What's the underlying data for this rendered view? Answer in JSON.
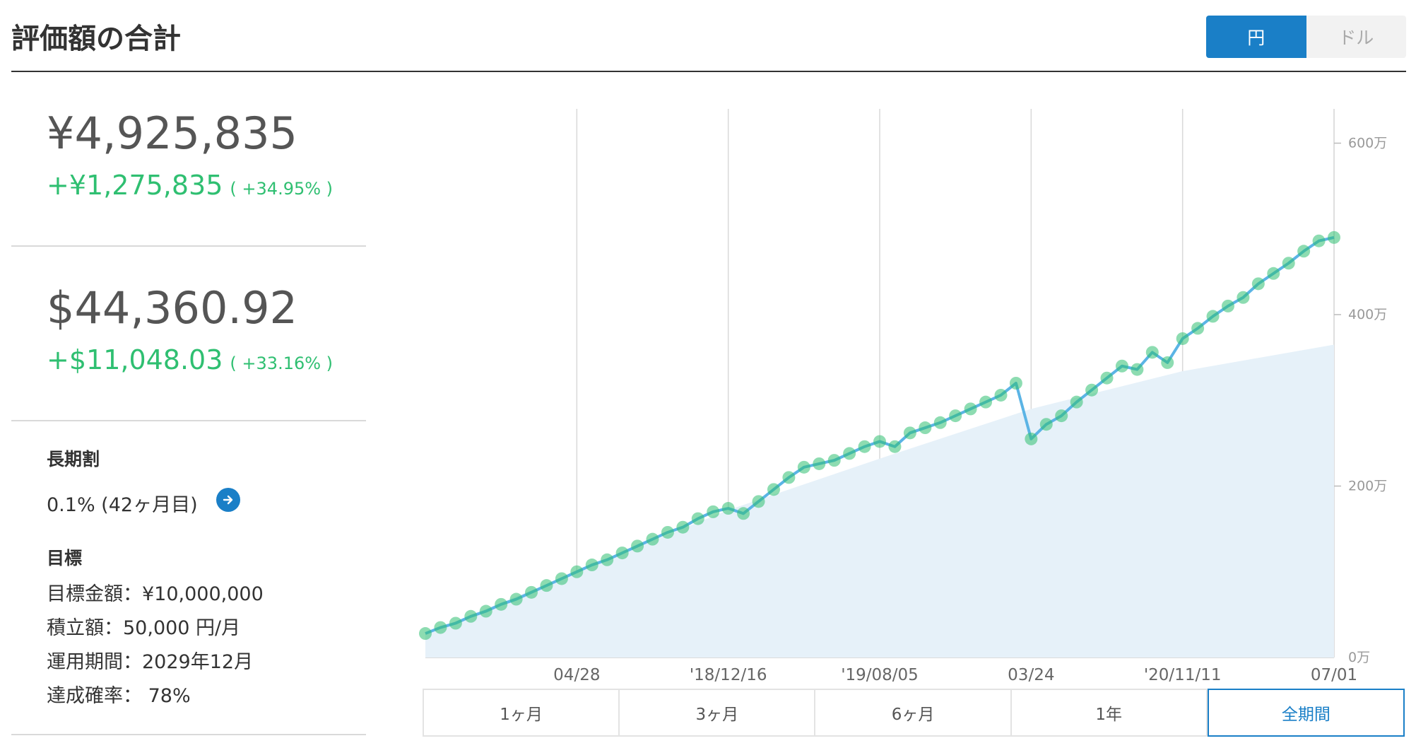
{
  "header": {
    "title": "評価額の合計",
    "currency_options": [
      "円",
      "ドル"
    ],
    "selected_currency": "円"
  },
  "summary_jpy": {
    "total": "¥4,925,835",
    "gain": "+¥1,275,835",
    "gain_pct": "( +34.95% )"
  },
  "summary_usd": {
    "total": "$44,360.92",
    "gain": "+$11,048.03",
    "gain_pct": "( +33.16% )"
  },
  "long_term": {
    "label": "長期割",
    "value": "0.1% (42ヶ月目)"
  },
  "goal": {
    "label": "目標",
    "target_amount": "目標金額：¥10,000,000",
    "monthly": "積立額：50,000 円/月",
    "period": "運用期間：2029年12月",
    "probability": "達成確率： 78%"
  },
  "range_tabs": [
    "1ヶ月",
    "3ヶ月",
    "6ヶ月",
    "1年",
    "全期間"
  ],
  "selected_range": "全期間",
  "colors": {
    "accent": "#1a7fc7",
    "gain": "#2fbf71",
    "line": "#5bb4e5",
    "marker": "#2fbf71",
    "area": "#e6f1f9"
  },
  "chart_data": {
    "type": "area",
    "x_ticks": [
      "04/28",
      "'18/12/16",
      "'19/08/05",
      "03/24",
      "'20/11/11",
      "07/01"
    ],
    "y_ticks": [
      "0万",
      "200万",
      "400万",
      "600万"
    ],
    "ylim": [
      0,
      640
    ],
    "y_unit": "万",
    "series": [
      {
        "kind": "valuation",
        "points": [
          [
            0,
            28
          ],
          [
            4,
            35
          ],
          [
            8,
            40
          ],
          [
            12,
            48
          ],
          [
            16,
            54
          ],
          [
            20,
            62
          ],
          [
            24,
            68
          ],
          [
            28,
            76
          ],
          [
            32,
            84
          ],
          [
            36,
            92
          ],
          [
            40,
            100
          ],
          [
            44,
            108
          ],
          [
            48,
            114
          ],
          [
            52,
            122
          ],
          [
            56,
            130
          ],
          [
            60,
            138
          ],
          [
            64,
            146
          ],
          [
            68,
            152
          ],
          [
            72,
            162
          ],
          [
            76,
            170
          ],
          [
            80,
            174
          ],
          [
            84,
            168
          ],
          [
            88,
            182
          ],
          [
            92,
            196
          ],
          [
            96,
            210
          ],
          [
            100,
            222
          ],
          [
            104,
            226
          ],
          [
            108,
            230
          ],
          [
            112,
            238
          ],
          [
            116,
            246
          ],
          [
            120,
            252
          ],
          [
            124,
            246
          ],
          [
            128,
            262
          ],
          [
            132,
            268
          ],
          [
            136,
            274
          ],
          [
            140,
            282
          ],
          [
            144,
            290
          ],
          [
            148,
            298
          ],
          [
            152,
            306
          ],
          [
            156,
            320
          ],
          [
            160,
            255
          ],
          [
            164,
            272
          ],
          [
            168,
            282
          ],
          [
            172,
            298
          ],
          [
            176,
            312
          ],
          [
            180,
            326
          ],
          [
            184,
            340
          ],
          [
            188,
            336
          ],
          [
            192,
            356
          ],
          [
            196,
            344
          ],
          [
            200,
            372
          ],
          [
            204,
            384
          ],
          [
            208,
            398
          ],
          [
            212,
            410
          ],
          [
            216,
            420
          ],
          [
            220,
            436
          ],
          [
            224,
            448
          ],
          [
            228,
            460
          ],
          [
            232,
            474
          ],
          [
            236,
            486
          ],
          [
            240,
            490
          ]
        ]
      },
      {
        "kind": "principal",
        "points": [
          [
            0,
            28
          ],
          [
            40,
            100
          ],
          [
            80,
            172
          ],
          [
            120,
            232
          ],
          [
            160,
            290
          ],
          [
            200,
            334
          ],
          [
            240,
            365
          ]
        ]
      }
    ],
    "x_range": [
      0,
      240
    ]
  }
}
